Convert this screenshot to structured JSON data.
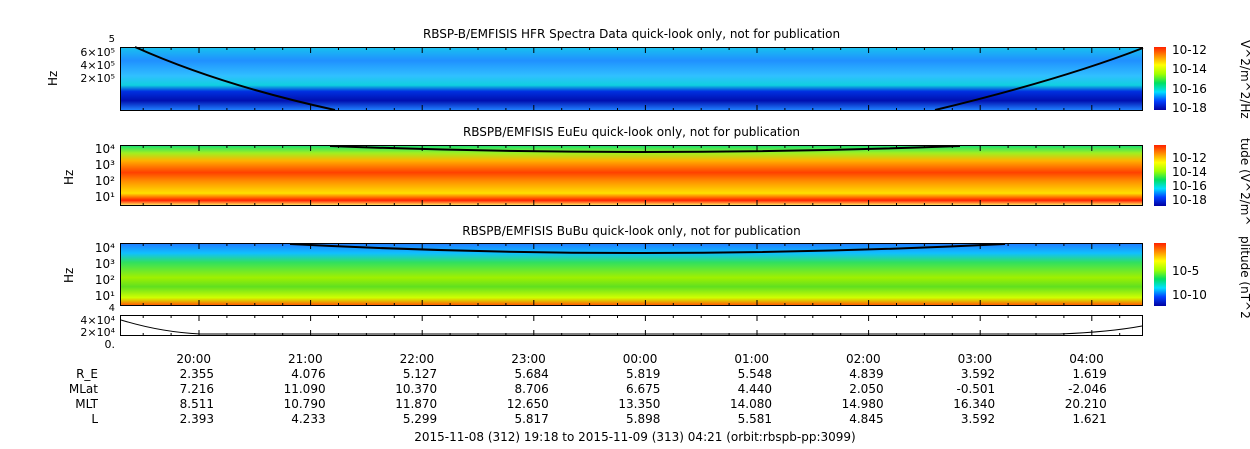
{
  "chart_data": [
    {
      "type": "heatmap",
      "title": "RBSP-B/EMFISIS  HFR Spectra Data quick-look only, not for publication",
      "ylabel": "Hz",
      "yticks": [
        "2×10⁵",
        "4×10⁵",
        "6×10⁵",
        "5"
      ],
      "colorbar": {
        "label": "V^2/m^2/Hz",
        "ticks": [
          "10-12",
          "10-14",
          "10-16",
          "10-18"
        ]
      }
    },
    {
      "type": "heatmap",
      "title": "RBSPB/EMFISIS  EuEu quick-look only, not for publication",
      "ylabel": "Hz",
      "yticks": [
        "10⁴",
        "10³",
        "10²",
        "10¹"
      ],
      "colorbar": {
        "label": "tude (V^2/m^",
        "ticks": [
          "10-12",
          "10-14",
          "10-16",
          "10-18"
        ]
      }
    },
    {
      "type": "heatmap",
      "title": "RBSPB/EMFISIS  BuBu quick-look only, not for publication",
      "ylabel": "Hz",
      "yticks": [
        "10⁴",
        "10³",
        "10²",
        "10¹"
      ],
      "colorbar": {
        "label": "plitude (nT^2",
        "ticks": [
          "10-5",
          "10-10"
        ]
      }
    },
    {
      "type": "line",
      "yticks": [
        "4×10⁴",
        "2×10⁴",
        "0.",
        "4"
      ]
    }
  ],
  "xaxis": {
    "times": [
      "20:00",
      "21:00",
      "22:00",
      "23:00",
      "00:00",
      "01:00",
      "02:00",
      "03:00",
      "04:00"
    ],
    "rows": [
      {
        "label": "R_E",
        "values": [
          "2.355",
          "4.076",
          "5.127",
          "5.684",
          "5.819",
          "5.548",
          "4.839",
          "3.592",
          "1.619"
        ]
      },
      {
        "label": "MLat",
        "values": [
          "7.216",
          "11.090",
          "10.370",
          "8.706",
          "6.675",
          "4.440",
          "2.050",
          "-0.501",
          "-2.046"
        ]
      },
      {
        "label": "MLT",
        "values": [
          "8.511",
          "10.790",
          "11.870",
          "12.650",
          "13.350",
          "14.080",
          "14.980",
          "16.340",
          "20.210"
        ]
      },
      {
        "label": "L",
        "values": [
          "2.393",
          "4.233",
          "5.299",
          "5.817",
          "5.898",
          "5.581",
          "4.845",
          "3.592",
          "1.621"
        ]
      }
    ],
    "footer": "2015-11-08 (312) 19:18 to 2015-11-09 (313) 04:21 (orbit:rbspb-pp:3099)"
  }
}
